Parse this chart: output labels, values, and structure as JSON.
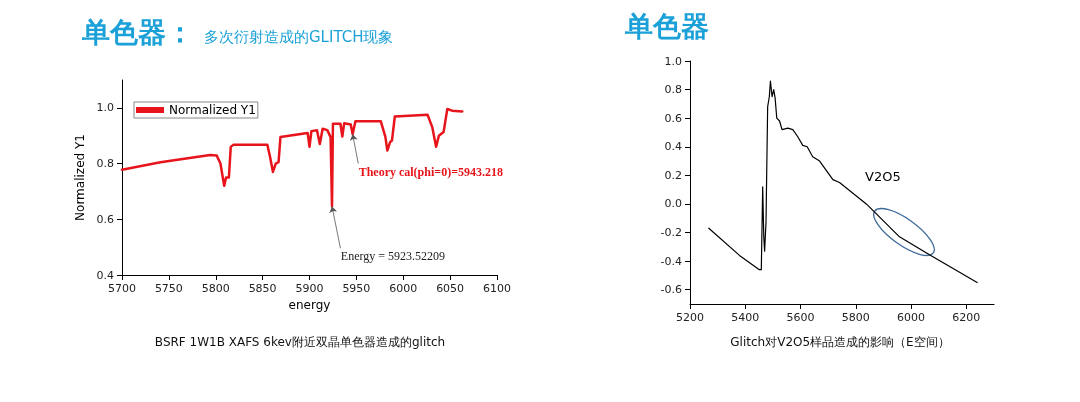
{
  "chart_data": [
    {
      "type": "line",
      "title": "单色器：",
      "subtitle": "多次衍射造成的GLITCH现象",
      "xlabel": "energy",
      "ylabel": "Normalized Y1",
      "x": [
        5700,
        5741,
        5794,
        5801,
        5805,
        5809,
        5811,
        5814,
        5816,
        5819,
        5855,
        5858,
        5861,
        5864,
        5867,
        5869,
        5898,
        5900,
        5902,
        5908,
        5911,
        5914,
        5919,
        5922.5,
        5924,
        5925,
        5933,
        5935,
        5937,
        5944,
        5946,
        5949,
        5976,
        5981,
        5983,
        5986,
        5988,
        5991,
        6026,
        6031,
        6035,
        6038,
        6043,
        6047,
        6052,
        6063
      ],
      "series": [
        {
          "name": "Normalized Y1",
          "color": "#e8141b",
          "values": [
            0.778,
            0.805,
            0.831,
            0.829,
            0.8,
            0.72,
            0.75,
            0.75,
            0.86,
            0.868,
            0.868,
            0.823,
            0.77,
            0.8,
            0.805,
            0.895,
            0.91,
            0.86,
            0.916,
            0.92,
            0.87,
            0.925,
            0.92,
            0.895,
            0.646,
            0.943,
            0.943,
            0.897,
            0.945,
            0.94,
            0.905,
            0.952,
            0.952,
            0.895,
            0.847,
            0.877,
            0.883,
            0.969,
            0.975,
            0.93,
            0.86,
            0.9,
            0.913,
            0.996,
            0.99,
            0.987
          ]
        }
      ],
      "xlim": [
        5700,
        6100
      ],
      "xticks": [
        5700,
        5750,
        5800,
        5850,
        5900,
        5950,
        6000,
        6050,
        6100
      ],
      "ylim": [
        0.4,
        1.1
      ],
      "yticks": [
        {
          "value": 0.4,
          "label": "0.4"
        },
        {
          "value": 0.6,
          "label": "0.6"
        },
        {
          "value": 0.8,
          "label": "0.8"
        },
        {
          "value": 1,
          "label": "1.0"
        }
      ],
      "grid": false,
      "legend": "top left",
      "marker": "none",
      "line_style": "solid",
      "annotations": [
        {
          "text": "Theory cal(phi=0)=5943.218",
          "x": 5946,
          "y": 0.905
        },
        {
          "text": "Energy = 5923.52209",
          "x": 5924,
          "y": 0.646
        },
        "BSRF 1W1B XAFS 6kev附近双晶单色器造成的glitch"
      ]
    },
    {
      "type": "line",
      "title": "单色器",
      "x": [
        5268,
        5379,
        5451,
        5458,
        5463,
        5467,
        5470,
        5475,
        5481,
        5487,
        5491,
        5497,
        5503,
        5508,
        5514,
        5524,
        5533,
        5554,
        5572,
        5590,
        5608,
        5624,
        5644,
        5669,
        5717,
        5741,
        5838,
        5958,
        6079,
        6239
      ],
      "series": [
        {
          "name": "V2O5",
          "color": "#000000",
          "values": [
            -0.17,
            -0.36,
            -0.46,
            -0.46,
            0.12,
            -0.23,
            -0.33,
            -0.13,
            0.68,
            0.75,
            0.86,
            0.75,
            0.8,
            0.74,
            0.6,
            0.58,
            0.52,
            0.53,
            0.52,
            0.47,
            0.41,
            0.4,
            0.33,
            0.3,
            0.17,
            0.15,
            0,
            -0.23,
            -0.37,
            -0.55
          ]
        }
      ],
      "xlim": [
        5200,
        6300
      ],
      "xticks": [
        5200,
        5400,
        5600,
        5800,
        6000,
        6200
      ],
      "ylim": [
        -0.7,
        1
      ],
      "yticks": [
        {
          "value": -0.6,
          "label": "-0.6"
        },
        {
          "value": -0.4,
          "label": "-0.4"
        },
        {
          "value": -0.2,
          "label": "-0.2"
        },
        {
          "value": 0,
          "label": "0.0"
        },
        {
          "value": 0.2,
          "label": "0.2"
        },
        {
          "value": 0.4,
          "label": "0.4"
        },
        {
          "value": 0.6,
          "label": "0.6"
        },
        {
          "value": 0.8,
          "label": "0.8"
        },
        {
          "value": 1,
          "label": "1.0"
        }
      ],
      "grid": false,
      "marker": "none",
      "line_style": "solid",
      "annotations": [
        "Glitch对V2O5样品造成的影响（E空间）"
      ]
    }
  ]
}
